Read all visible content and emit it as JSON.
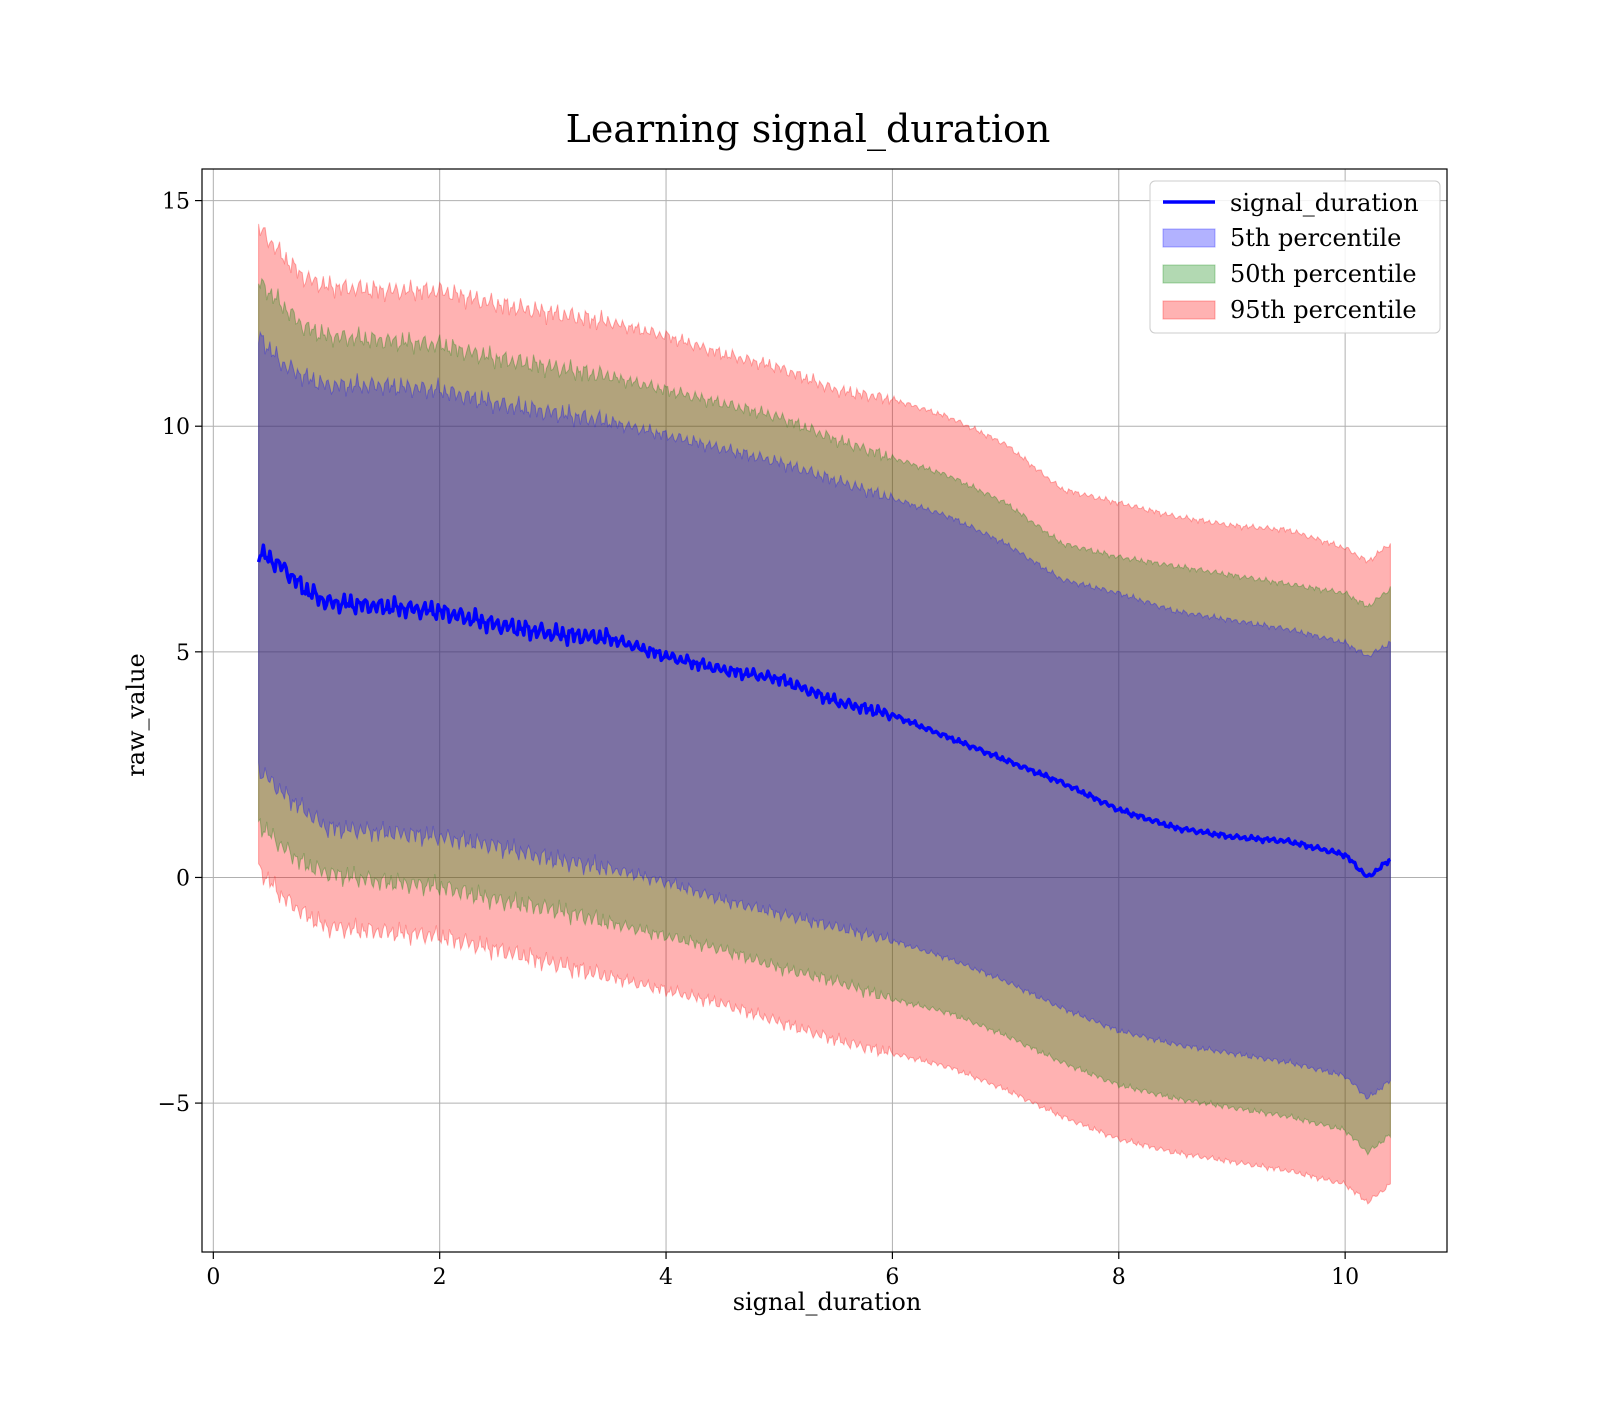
{
  "chart_data": {
    "type": "line",
    "title": "Learning signal_duration",
    "xlabel": "signal_duration",
    "ylabel": "raw_value",
    "xlim": [
      -0.1,
      10.9
    ],
    "ylim": [
      -8.3,
      15.7
    ],
    "x_ticks": [
      0,
      2,
      4,
      6,
      8,
      10
    ],
    "y_ticks": [
      -5,
      0,
      5,
      10,
      15
    ],
    "x_tick_labels": [
      "0",
      "2",
      "4",
      "6",
      "8",
      "10"
    ],
    "y_tick_labels": [
      "−5",
      "0",
      "5",
      "10",
      "15"
    ],
    "grid": true,
    "legend_position": "top-right",
    "legend": [
      "signal_duration",
      "5th percentile",
      "50th percentile",
      "95th percentile"
    ],
    "x": [
      0.4,
      0.6,
      0.8,
      1.0,
      1.5,
      2.0,
      2.5,
      3.0,
      3.5,
      4.0,
      4.5,
      5.0,
      5.5,
      6.0,
      6.5,
      7.0,
      7.5,
      8.0,
      8.5,
      9.0,
      9.5,
      10.0,
      10.2,
      10.4
    ],
    "series": [
      {
        "name": "signal_duration",
        "kind": "line",
        "color": "#0000ff",
        "values": [
          7.2,
          6.9,
          6.4,
          6.1,
          6.0,
          5.9,
          5.6,
          5.4,
          5.3,
          4.9,
          4.6,
          4.4,
          3.9,
          3.6,
          3.1,
          2.6,
          2.1,
          1.5,
          1.1,
          0.9,
          0.8,
          0.5,
          0.0,
          0.4
        ]
      },
      {
        "name": "5th percentile",
        "kind": "band",
        "color": "#0000ff",
        "lower": [
          2.4,
          1.9,
          1.5,
          1.1,
          1.0,
          0.9,
          0.7,
          0.4,
          0.2,
          -0.1,
          -0.5,
          -0.8,
          -1.1,
          -1.4,
          -1.8,
          -2.3,
          -2.9,
          -3.4,
          -3.7,
          -3.9,
          -4.1,
          -4.4,
          -4.9,
          -4.5
        ],
        "upper": [
          12.0,
          11.4,
          11.1,
          10.9,
          10.9,
          10.8,
          10.5,
          10.3,
          10.1,
          9.8,
          9.5,
          9.2,
          8.8,
          8.4,
          8.0,
          7.4,
          6.6,
          6.3,
          5.9,
          5.7,
          5.5,
          5.2,
          4.9,
          5.2
        ]
      },
      {
        "name": "50th percentile",
        "kind": "band",
        "color": "#008000",
        "lower": [
          1.2,
          0.7,
          0.3,
          0.1,
          -0.1,
          -0.2,
          -0.5,
          -0.7,
          -1.0,
          -1.3,
          -1.6,
          -2.0,
          -2.3,
          -2.7,
          -3.0,
          -3.5,
          -4.1,
          -4.6,
          -4.9,
          -5.1,
          -5.3,
          -5.6,
          -6.1,
          -5.7
        ],
        "upper": [
          13.2,
          12.7,
          12.2,
          12.0,
          11.9,
          11.8,
          11.5,
          11.3,
          11.1,
          10.8,
          10.5,
          10.2,
          9.7,
          9.3,
          8.9,
          8.3,
          7.4,
          7.1,
          6.9,
          6.7,
          6.5,
          6.3,
          6.0,
          6.4
        ]
      },
      {
        "name": "95th percentile",
        "kind": "band",
        "color": "#ff0000",
        "lower": [
          0.2,
          -0.4,
          -0.8,
          -1.1,
          -1.2,
          -1.3,
          -1.6,
          -1.9,
          -2.2,
          -2.5,
          -2.8,
          -3.2,
          -3.6,
          -3.9,
          -4.2,
          -4.7,
          -5.3,
          -5.8,
          -6.1,
          -6.3,
          -6.5,
          -6.8,
          -7.2,
          -6.8
        ],
        "upper": [
          14.4,
          13.8,
          13.3,
          13.1,
          13.0,
          13.0,
          12.7,
          12.5,
          12.3,
          12.0,
          11.6,
          11.3,
          10.8,
          10.6,
          10.2,
          9.6,
          8.6,
          8.3,
          8.0,
          7.8,
          7.7,
          7.3,
          7.0,
          7.4
        ]
      }
    ]
  }
}
